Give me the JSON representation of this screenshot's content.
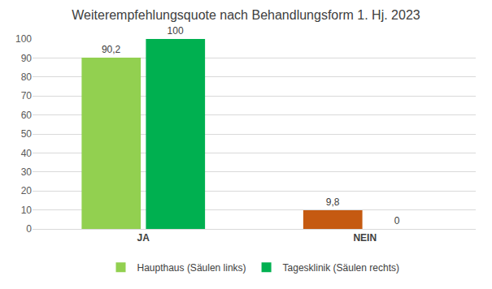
{
  "chart_data": {
    "type": "bar",
    "title": "Weiterempfehlungsquote nach Behandlungsform 1. Hj. 2023",
    "categories": [
      "JA",
      "NEIN"
    ],
    "series": [
      {
        "name": "Haupthaus (Säulen links)",
        "colors": [
          "#92d050",
          "#c55a11"
        ],
        "values": [
          90.2,
          9.8
        ],
        "value_labels": [
          "90,2",
          "9,8"
        ]
      },
      {
        "name": "Tagesklinik (Säulen rechts)",
        "colors": [
          "#00b050",
          "#00b050"
        ],
        "values": [
          100,
          0
        ]
      }
    ],
    "ylim": [
      0,
      100
    ],
    "yticks": [
      0,
      10,
      20,
      30,
      40,
      50,
      60,
      70,
      80,
      90,
      100
    ],
    "grid": true,
    "data_labels": true,
    "legend": "bottom"
  }
}
